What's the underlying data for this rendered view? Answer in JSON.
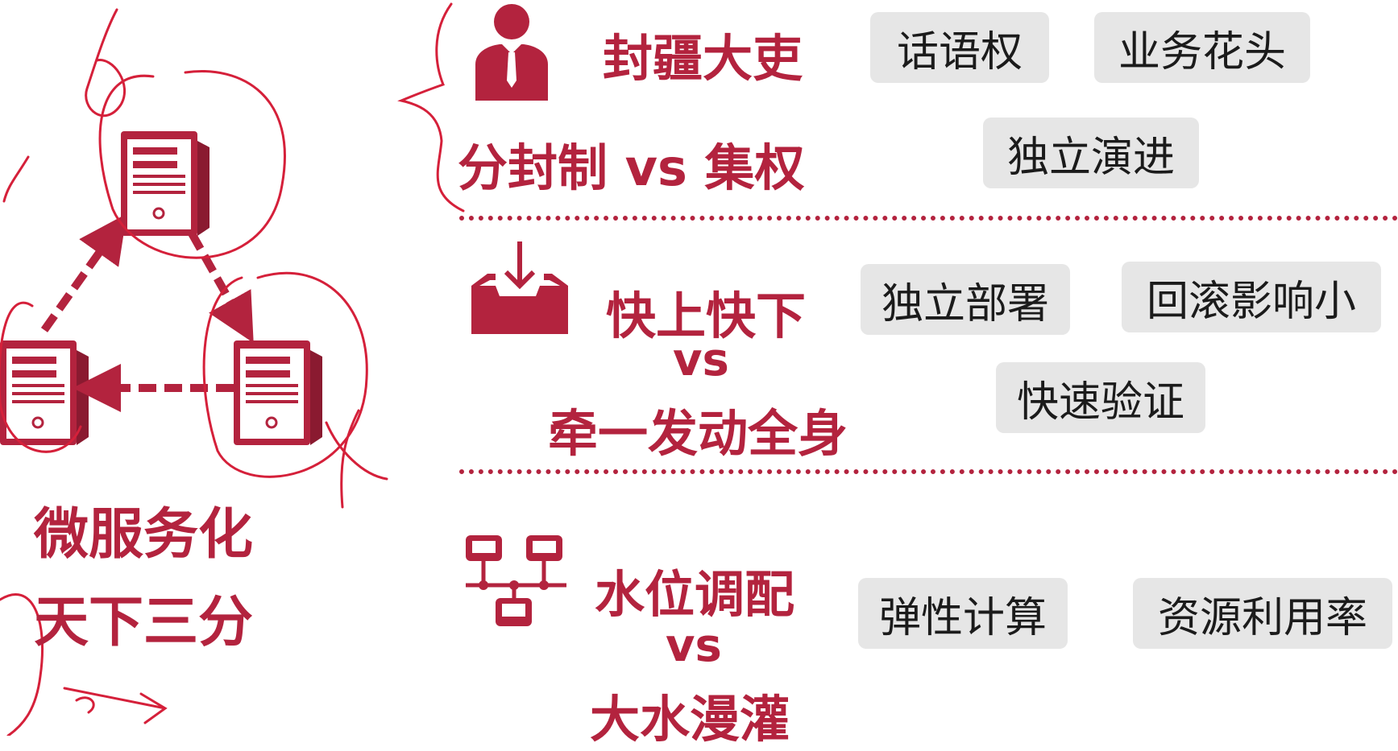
{
  "left": {
    "line1": "微服务化",
    "line2": "天下三分"
  },
  "section1": {
    "title": "封疆大吏",
    "subtitle": "分封制 vs 集权",
    "tags": [
      "话语权",
      "业务花头",
      "独立演进"
    ]
  },
  "section2": {
    "title": "快上快下",
    "vs": "vs",
    "title2": "牵一发动全身",
    "tags": [
      "独立部署",
      "回滚影响小",
      "快速验证"
    ]
  },
  "section3": {
    "title": "水位调配",
    "vs": "vs",
    "title2": "大水漫灌",
    "tags": [
      "弹性计算",
      "资源利用率"
    ]
  },
  "colors": {
    "accent": "#b3233e",
    "tag_bg": "#e6e6e6",
    "annotation": "#d5203a"
  },
  "icons": [
    "user-suit-icon",
    "inbox-download-icon",
    "network-icon",
    "server-icon"
  ]
}
